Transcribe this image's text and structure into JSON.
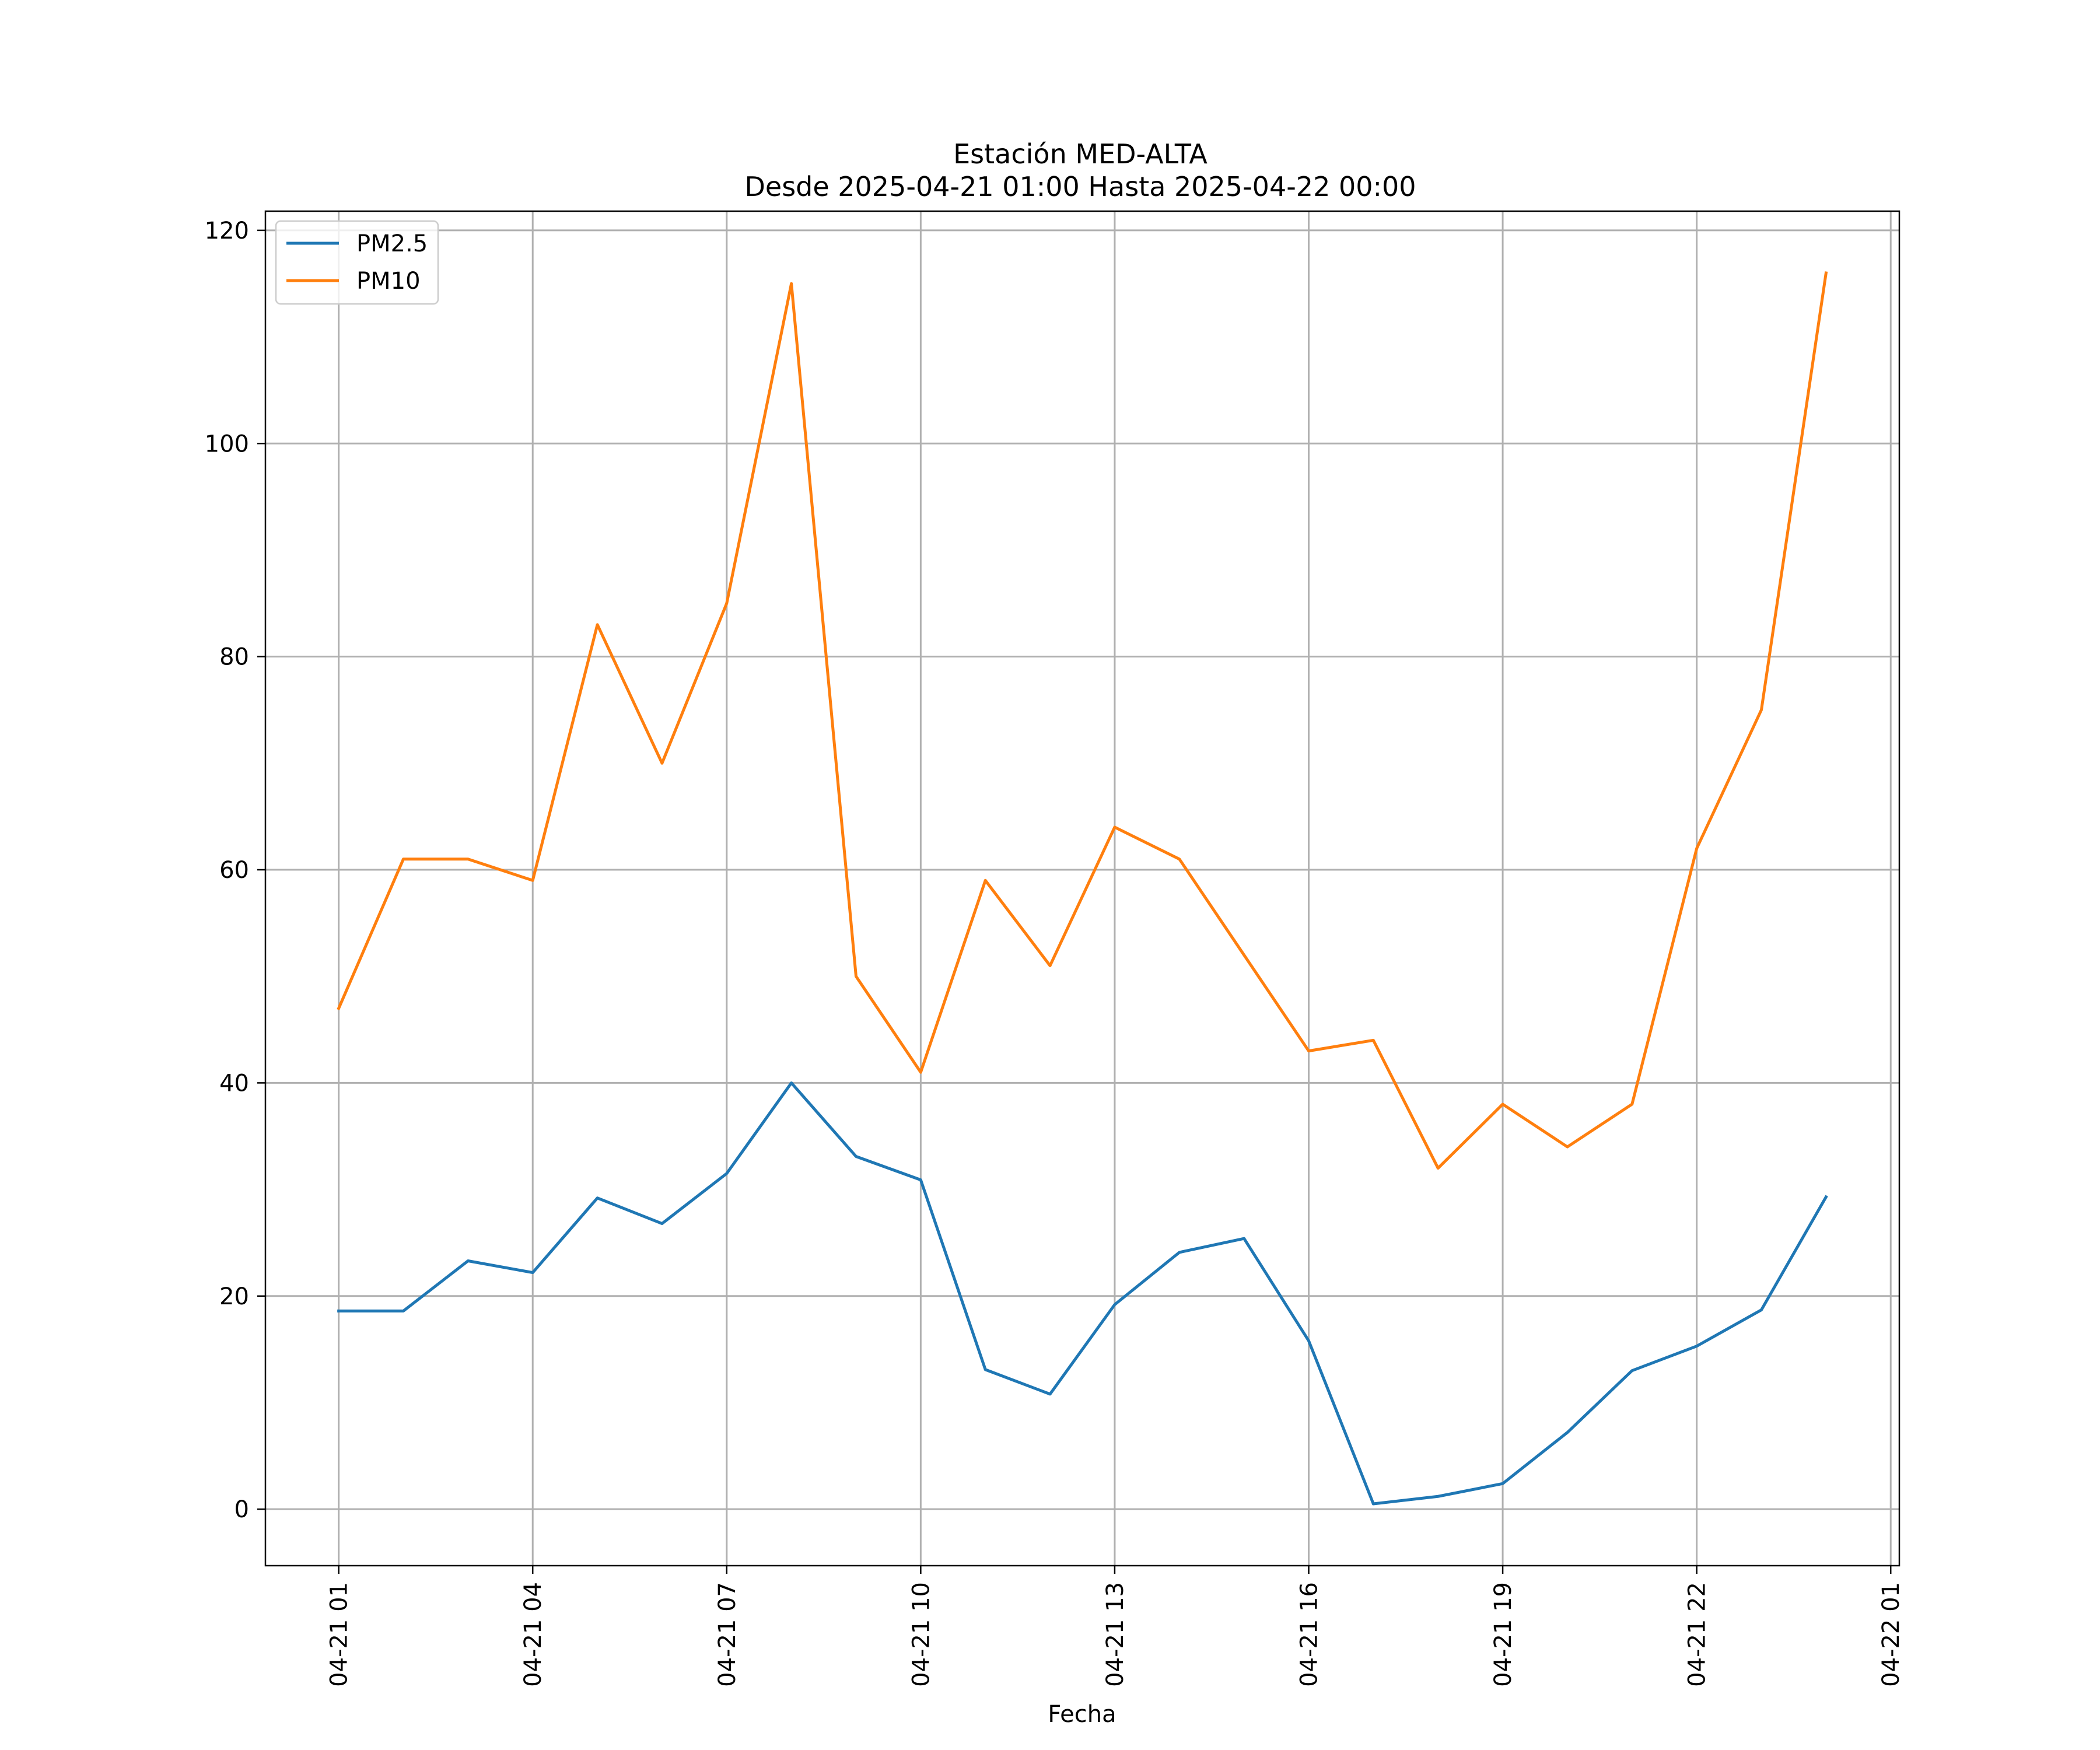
{
  "chart_data": {
    "type": "line",
    "title": "Estación MED-ALTA",
    "subtitle": "Desde 2025-04-21 01:00 Hasta 2025-04-22 00:00",
    "xlabel": "Fecha",
    "ylabel": "",
    "x": [
      "2025-04-21 01:00",
      "2025-04-21 02:00",
      "2025-04-21 03:00",
      "2025-04-21 04:00",
      "2025-04-21 05:00",
      "2025-04-21 06:00",
      "2025-04-21 07:00",
      "2025-04-21 08:00",
      "2025-04-21 09:00",
      "2025-04-21 10:00",
      "2025-04-21 11:00",
      "2025-04-21 12:00",
      "2025-04-21 13:00",
      "2025-04-21 14:00",
      "2025-04-21 15:00",
      "2025-04-21 16:00",
      "2025-04-21 17:00",
      "2025-04-21 18:00",
      "2025-04-21 19:00",
      "2025-04-21 20:00",
      "2025-04-21 21:00",
      "2025-04-21 22:00",
      "2025-04-21 23:00",
      "2025-04-22 00:00"
    ],
    "series": [
      {
        "name": "PM2.5",
        "color": "#1f77b4",
        "values": [
          18.6,
          18.6,
          23.3,
          22.2,
          29.2,
          26.8,
          31.5,
          40.0,
          33.1,
          30.9,
          13.1,
          10.8,
          19.2,
          24.1,
          25.4,
          15.8,
          0.5,
          1.2,
          2.4,
          7.2,
          13.0,
          15.3,
          18.7,
          29.3
        ]
      },
      {
        "name": "PM10",
        "color": "#ff7f0e",
        "values": [
          47,
          61,
          61,
          59,
          83,
          70,
          85,
          115,
          50,
          41,
          59,
          51,
          64,
          61,
          52,
          43,
          44,
          32,
          38,
          34,
          38,
          62,
          75,
          116
        ]
      }
    ],
    "x_ticks": [
      "2025-04-21 01:00",
      "2025-04-21 04:00",
      "2025-04-21 07:00",
      "2025-04-21 10:00",
      "2025-04-21 13:00",
      "2025-04-21 16:00",
      "2025-04-21 19:00",
      "2025-04-21 22:00",
      "2025-04-22 01:00"
    ],
    "x_tick_labels": [
      "04-21 01",
      "04-21 04",
      "04-21 07",
      "04-21 10",
      "04-21 13",
      "04-21 16",
      "04-21 19",
      "04-21 22",
      "04-22 01"
    ],
    "xlim": [
      "2025-04-20 23:52",
      "2025-04-22 01:08"
    ],
    "y_ticks": [
      0,
      20,
      40,
      60,
      80,
      100,
      120
    ],
    "y_tick_labels": [
      "0",
      "20",
      "40",
      "60",
      "80",
      "100",
      "120"
    ],
    "ylim": [
      -5.3,
      121.8
    ],
    "grid": true,
    "legend_position": "upper-left"
  }
}
